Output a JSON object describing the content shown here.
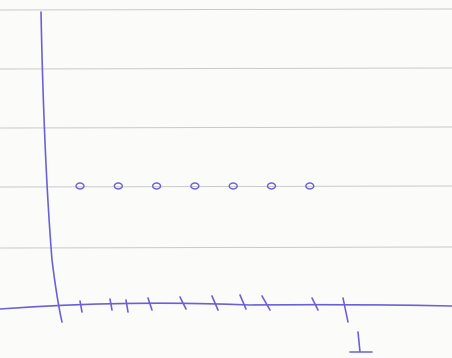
{
  "chart_data": {
    "type": "scatter",
    "categories": [
      null,
      null,
      null,
      null,
      null,
      null,
      null
    ],
    "values": [
      2,
      2,
      2,
      2,
      2,
      2,
      2
    ],
    "color": "#6b5fd6",
    "ylim": [
      0,
      5
    ]
  }
}
